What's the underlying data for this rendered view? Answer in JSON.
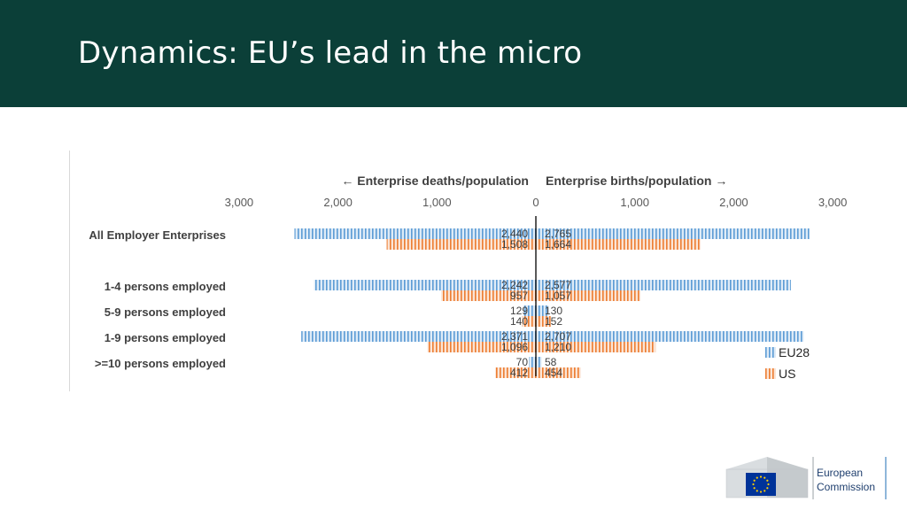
{
  "header": {
    "title": "Dynamics: EU’s lead in the micro"
  },
  "colors": {
    "header_bg": "#0b3f38",
    "eu28": "#5b9bd5",
    "us": "#ed7d31",
    "axis": "#000000"
  },
  "chart_data": {
    "type": "bar",
    "orientation": "horizontal-diverging",
    "direction_labels": {
      "left": "← Enterprise deaths/population",
      "right": "Enterprise births/population →"
    },
    "ticks": [
      "3,000",
      "2,000",
      "1,000",
      "0",
      "1,000",
      "2,000",
      "3,000"
    ],
    "xlim": [
      -3000,
      3000
    ],
    "categories": [
      "All Employer Enterprises",
      "1-4 persons employed",
      "5-9 persons employed",
      "1-9 persons employed",
      ">=10 persons employed"
    ],
    "series": [
      {
        "name": "EU28",
        "deaths": [
          2440,
          2242,
          129,
          2371,
          70
        ],
        "births": [
          2765,
          2577,
          130,
          2707,
          58
        ],
        "death_labels": [
          "2,440",
          "2,242",
          "129",
          "2,371",
          "70"
        ],
        "birth_labels": [
          "2,765",
          "2,577",
          "130",
          "2,707",
          "58"
        ]
      },
      {
        "name": "US",
        "deaths": [
          1508,
          957,
          140,
          1096,
          412
        ],
        "births": [
          1664,
          1057,
          152,
          1210,
          454
        ],
        "death_labels": [
          "1,508",
          "957",
          "140",
          "1,096",
          "412"
        ],
        "birth_labels": [
          "1,664",
          "1,057",
          "152",
          "1,210",
          "454"
        ]
      }
    ],
    "legend_position": "bottom-right",
    "grid": false
  },
  "logo": {
    "line1": "European",
    "line2": "Commission"
  }
}
